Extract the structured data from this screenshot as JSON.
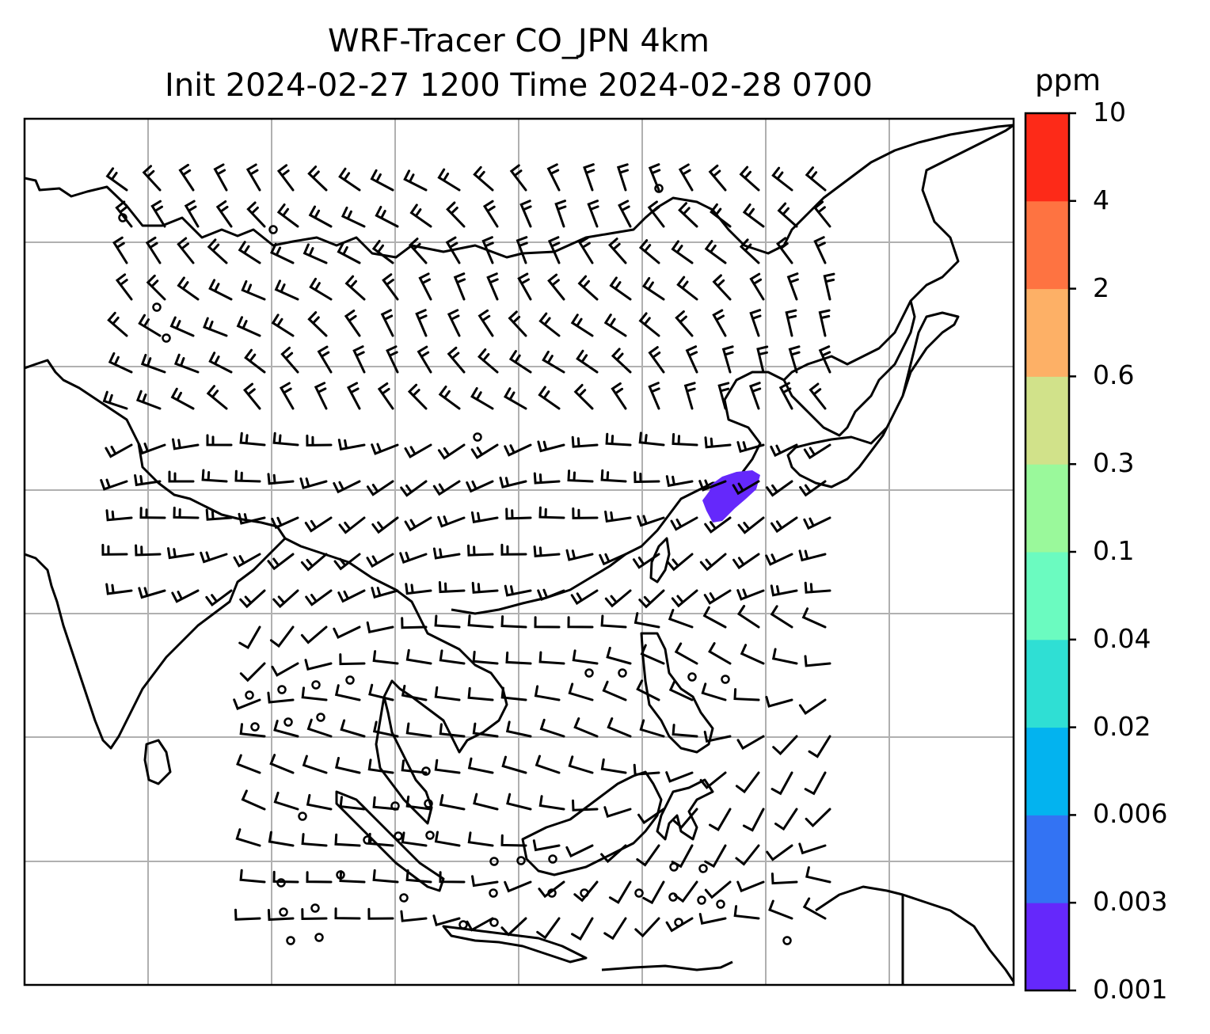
{
  "title": {
    "line1": "WRF-Tracer CO_JPN 4km",
    "line2": "Init 2024-02-27 1200 Time 2024-02-28 0700"
  },
  "colorbar": {
    "unit": "ppm",
    "ticks": [
      "0.001",
      "0.003",
      "0.006",
      "0.02",
      "0.04",
      "0.1",
      "0.3",
      "0.6",
      "2",
      "4",
      "10"
    ],
    "colors": [
      "#6528fb",
      "#3373f3",
      "#03b3ef",
      "#2fdfd4",
      "#6bfbc0",
      "#9af99b",
      "#d1e28a",
      "#fdb066",
      "#fe7341",
      "#fd2a18"
    ]
  },
  "map": {
    "background": "#ffffff",
    "coastline_color": "#000000",
    "gridline_color": "#b0b0b0",
    "barb_color": "#000000",
    "plume_color": "#6528fb"
  }
}
